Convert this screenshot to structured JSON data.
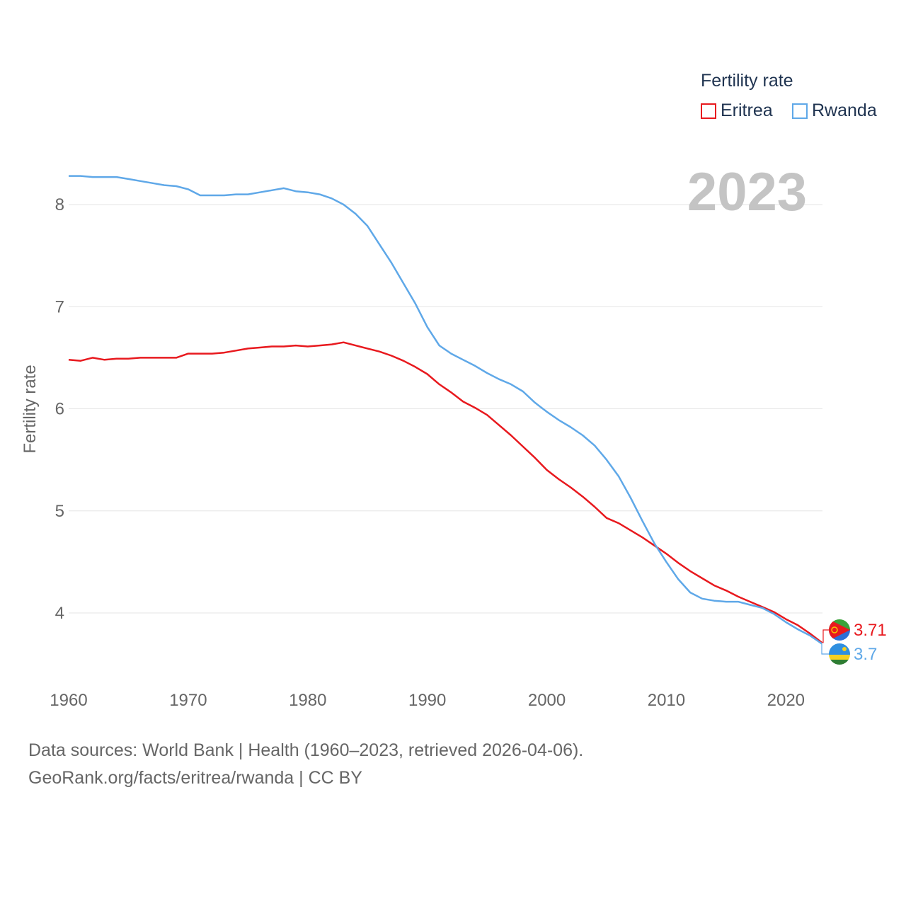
{
  "chart_data": {
    "type": "line",
    "legend_title": "Fertility rate",
    "ylabel": "Fertility rate",
    "xlabel": "",
    "year_label": "2023",
    "xlim": [
      1960,
      2023
    ],
    "ylim": [
      3.45,
      8.45
    ],
    "x_ticks": [
      1960,
      1970,
      1980,
      1990,
      2000,
      2010,
      2020
    ],
    "y_ticks": [
      4,
      5,
      6,
      7,
      8
    ],
    "grid": true,
    "legend_position": "top-right",
    "x": [
      1960,
      1961,
      1962,
      1963,
      1964,
      1965,
      1966,
      1967,
      1968,
      1969,
      1970,
      1971,
      1972,
      1973,
      1974,
      1975,
      1976,
      1977,
      1978,
      1979,
      1980,
      1981,
      1982,
      1983,
      1984,
      1985,
      1986,
      1987,
      1988,
      1989,
      1990,
      1991,
      1992,
      1993,
      1994,
      1995,
      1996,
      1997,
      1998,
      1999,
      2000,
      2001,
      2002,
      2003,
      2004,
      2005,
      2006,
      2007,
      2008,
      2009,
      2010,
      2011,
      2012,
      2013,
      2014,
      2015,
      2016,
      2017,
      2018,
      2019,
      2020,
      2021,
      2022,
      2023
    ],
    "series": [
      {
        "name": "Eritrea",
        "color": "#e8191e",
        "end_label": "3.71",
        "values": [
          6.48,
          6.47,
          6.5,
          6.48,
          6.49,
          6.49,
          6.5,
          6.5,
          6.5,
          6.5,
          6.54,
          6.54,
          6.54,
          6.55,
          6.57,
          6.59,
          6.6,
          6.61,
          6.61,
          6.62,
          6.61,
          6.62,
          6.63,
          6.65,
          6.62,
          6.59,
          6.56,
          6.52,
          6.47,
          6.41,
          6.34,
          6.24,
          6.16,
          6.07,
          6.01,
          5.94,
          5.84,
          5.74,
          5.63,
          5.52,
          5.4,
          5.31,
          5.23,
          5.14,
          5.04,
          4.93,
          4.88,
          4.81,
          4.74,
          4.66,
          4.58,
          4.49,
          4.41,
          4.34,
          4.27,
          4.22,
          4.16,
          4.11,
          4.06,
          4.01,
          3.94,
          3.88,
          3.8,
          3.71
        ]
      },
      {
        "name": "Rwanda",
        "color": "#5fa8e8",
        "end_label": "3.7",
        "values": [
          8.28,
          8.28,
          8.27,
          8.27,
          8.27,
          8.25,
          8.23,
          8.21,
          8.19,
          8.18,
          8.15,
          8.09,
          8.09,
          8.09,
          8.1,
          8.1,
          8.12,
          8.14,
          8.16,
          8.13,
          8.12,
          8.1,
          8.06,
          8.0,
          7.91,
          7.79,
          7.61,
          7.43,
          7.23,
          7.03,
          6.8,
          6.62,
          6.54,
          6.48,
          6.42,
          6.35,
          6.29,
          6.24,
          6.17,
          6.06,
          5.97,
          5.89,
          5.82,
          5.74,
          5.64,
          5.5,
          5.34,
          5.13,
          4.9,
          4.68,
          4.5,
          4.33,
          4.2,
          4.14,
          4.12,
          4.11,
          4.11,
          4.08,
          4.05,
          3.99,
          3.91,
          3.84,
          3.78,
          3.7
        ]
      }
    ]
  },
  "source": {
    "line1": "Data sources: World Bank | Health (1960–2023, retrieved 2026-04-06).",
    "line2": "GeoRank.org/facts/eritrea/rwanda | CC BY"
  }
}
